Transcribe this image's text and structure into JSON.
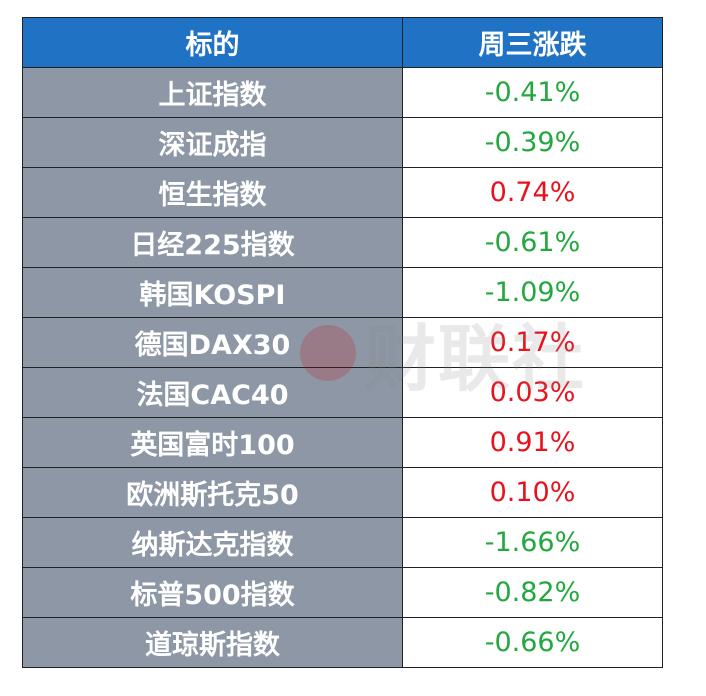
{
  "table": {
    "header": [
      "标的",
      "周三涨跌"
    ],
    "rows": [
      [
        "上证指数",
        "-0.41%"
      ],
      [
        "深证成指",
        "-0.39%"
      ],
      [
        "恒生指数",
        "0.74%"
      ],
      [
        "日经225指数",
        "-0.61%"
      ],
      [
        "韩国KOSPI",
        "-1.09%"
      ],
      [
        "德国DAX30",
        "0.17%"
      ],
      [
        "法国CAC40",
        "0.03%"
      ],
      [
        "英国富时100",
        "0.91%"
      ],
      [
        "欧洲斯托克50",
        "0.10%"
      ],
      [
        "纳斯达克指数",
        "-1.66%"
      ],
      [
        "标普500指数",
        "-0.82%"
      ],
      [
        "道琼斯指数",
        "-0.66%"
      ]
    ],
    "up_color": "#e8121d",
    "down_color": "#22a83f"
  },
  "watermark": "财联社"
}
